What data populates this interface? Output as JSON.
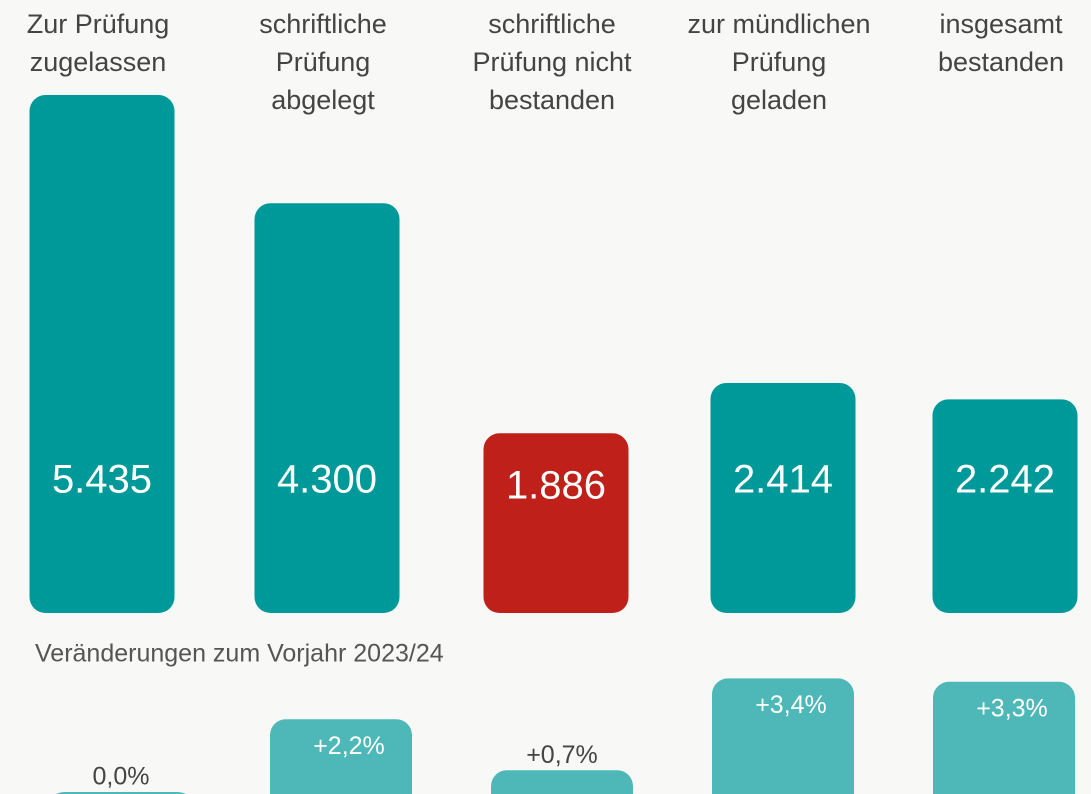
{
  "chart_data": [
    {
      "type": "bar",
      "categories": [
        [
          "Zur Prüfung",
          "zugelassen"
        ],
        [
          "schriftliche",
          "Prüfung",
          "abgelegt"
        ],
        [
          "schriftliche",
          "Prüfung nicht",
          "bestanden"
        ],
        [
          "zur mündlichen",
          "Prüfung",
          "geladen"
        ],
        [
          "insgesamt",
          "bestanden"
        ]
      ],
      "values": [
        5435,
        4300,
        1886,
        2414,
        2242
      ],
      "value_labels": [
        "5.435",
        "4.300",
        "1.886",
        "2.414",
        "2.242"
      ],
      "colors": [
        "#00999a",
        "#00999a",
        "#c0201a",
        "#00999a",
        "#00999a"
      ]
    },
    {
      "type": "bar",
      "title": "Veränderungen zum Vorjahr 2023/24",
      "values": [
        0.0,
        2.2,
        0.7,
        3.4,
        3.3
      ],
      "value_labels": [
        "0,0%",
        "+2,2%",
        "+0,7%",
        "+3,4%",
        "+3,3%"
      ],
      "color": "#4db8b7"
    }
  ]
}
